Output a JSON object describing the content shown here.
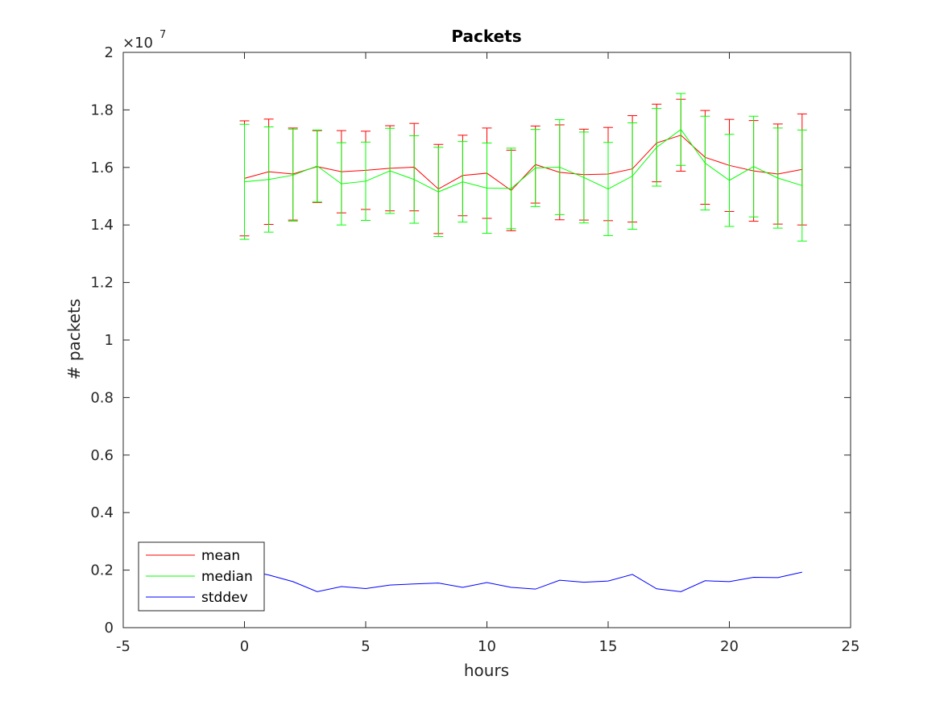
{
  "chart_data": {
    "type": "line",
    "title": "Packets",
    "xlabel": "hours",
    "ylabel": "# packets",
    "y_multiplier": {
      "base": "×10",
      "exponent": "7"
    },
    "xlim": [
      -5,
      25
    ],
    "ylim": [
      0,
      2
    ],
    "xticks": [
      -5,
      0,
      5,
      10,
      15,
      20,
      25
    ],
    "yticks": [
      0,
      0.2,
      0.4,
      0.6,
      0.8,
      1,
      1.2,
      1.4,
      1.6,
      1.8,
      2
    ],
    "xtick_labels": [
      "-5",
      "0",
      "5",
      "10",
      "15",
      "20",
      "25"
    ],
    "ytick_labels": [
      "0",
      "0.2",
      "0.4",
      "0.6",
      "0.8",
      "1",
      "1.2",
      "1.4",
      "1.6",
      "1.8",
      "2"
    ],
    "grid": false,
    "legend_position": "bottom-left",
    "x": [
      0,
      1,
      2,
      3,
      4,
      5,
      6,
      7,
      8,
      9,
      10,
      11,
      12,
      13,
      14,
      15,
      16,
      17,
      18,
      19,
      20,
      21,
      22,
      23
    ],
    "series": [
      {
        "name": "mean",
        "color": "#ff0000",
        "values": [
          1.562,
          1.585,
          1.577,
          1.603,
          1.585,
          1.59,
          1.597,
          1.601,
          1.525,
          1.572,
          1.58,
          1.52,
          1.61,
          1.583,
          1.575,
          1.577,
          1.595,
          1.685,
          1.712,
          1.635,
          1.607,
          1.588,
          1.577,
          1.593
        ],
        "error": [
          0.2,
          0.183,
          0.16,
          0.125,
          0.143,
          0.136,
          0.148,
          0.152,
          0.155,
          0.14,
          0.157,
          0.14,
          0.134,
          0.165,
          0.158,
          0.162,
          0.185,
          0.135,
          0.125,
          0.163,
          0.16,
          0.175,
          0.174,
          0.193
        ]
      },
      {
        "name": "median",
        "color": "#00ff00",
        "values": [
          1.55,
          1.558,
          1.573,
          1.605,
          1.543,
          1.552,
          1.588,
          1.558,
          1.515,
          1.55,
          1.528,
          1.527,
          1.598,
          1.601,
          1.565,
          1.525,
          1.57,
          1.67,
          1.732,
          1.615,
          1.555,
          1.603,
          1.563,
          1.537
        ],
        "error": [
          0.2,
          0.183,
          0.16,
          0.125,
          0.143,
          0.136,
          0.148,
          0.152,
          0.155,
          0.14,
          0.157,
          0.14,
          0.134,
          0.165,
          0.158,
          0.162,
          0.185,
          0.135,
          0.125,
          0.163,
          0.16,
          0.175,
          0.174,
          0.193
        ]
      },
      {
        "name": "stddev",
        "color": "#0000ff",
        "values": [
          0.2,
          0.183,
          0.16,
          0.125,
          0.143,
          0.136,
          0.148,
          0.152,
          0.155,
          0.14,
          0.157,
          0.14,
          0.134,
          0.165,
          0.158,
          0.162,
          0.185,
          0.135,
          0.125,
          0.163,
          0.16,
          0.175,
          0.174,
          0.193
        ]
      }
    ]
  }
}
